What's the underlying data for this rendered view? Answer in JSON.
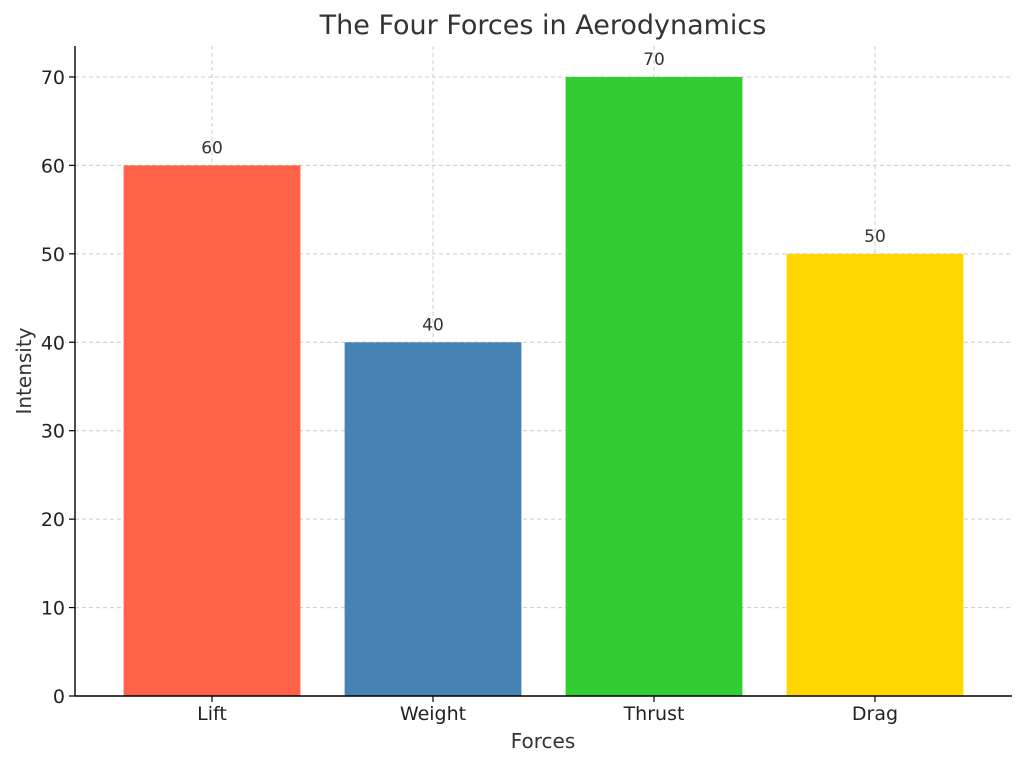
{
  "chart_data": {
    "type": "bar",
    "title": "The Four Forces in Aerodynamics",
    "xlabel": "Forces",
    "ylabel": "Intensity",
    "categories": [
      "Lift",
      "Weight",
      "Thrust",
      "Drag"
    ],
    "values": [
      60,
      40,
      70,
      50
    ],
    "data_labels": [
      "60",
      "40",
      "70",
      "50"
    ],
    "colors": [
      "#FF6347",
      "#4682B4",
      "#32CD32",
      "#FFD700"
    ],
    "ylim": [
      0,
      73.5
    ],
    "yticks": [
      0,
      10,
      20,
      30,
      40,
      50,
      60,
      70
    ],
    "ytick_labels": [
      "0",
      "10",
      "20",
      "30",
      "40",
      "50",
      "60",
      "70"
    ],
    "grid": true
  }
}
